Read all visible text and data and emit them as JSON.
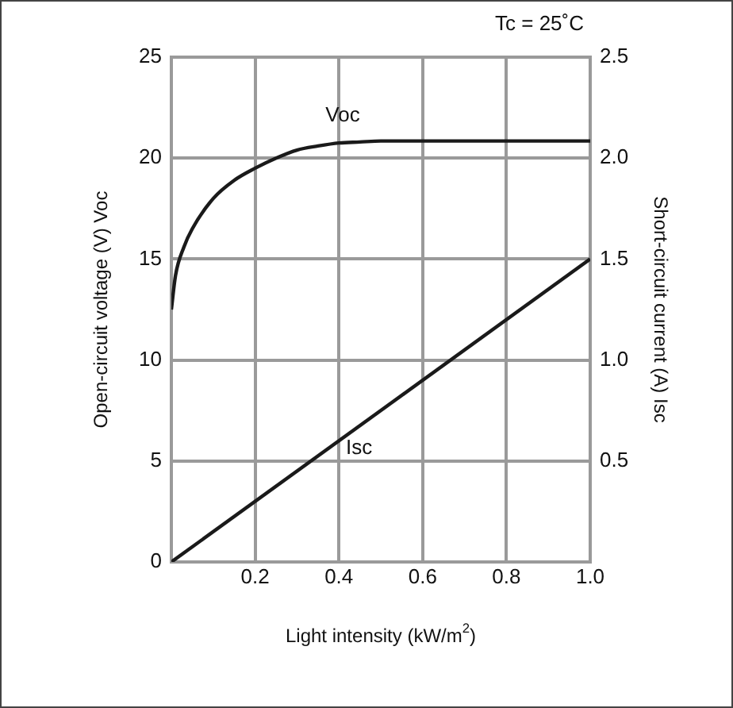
{
  "chart_data": {
    "type": "line",
    "xlabel": "Light intensity (kW/m$^{2}$)",
    "ylabel": "Open-circuit voltage (V) Voc",
    "y2label": "Short-circuit current (A) Isc",
    "annotations": [
      "Tc = 25˚C"
    ],
    "xlim": [
      0,
      1.0
    ],
    "xticks": [
      {
        "value": 0,
        "label": null
      },
      0.2,
      0.4,
      0.6,
      0.8,
      {
        "value": 1.0,
        "label": "1.0"
      }
    ],
    "ylim": [
      0,
      25
    ],
    "yticks": [
      0,
      5,
      10,
      15,
      20,
      25
    ],
    "y2lim": [
      0,
      2.5
    ],
    "y2ticks": [
      {
        "value": 0,
        "label": null
      },
      0.5,
      {
        "value": 1.0,
        "label": "1.0"
      },
      1.5,
      {
        "value": 2.0,
        "label": "2.0"
      },
      2.5
    ],
    "grid": true,
    "legend": false,
    "marker": "none",
    "line_style": "solid",
    "series": [
      {
        "name": "Voc",
        "color": "#1a1a1a",
        "x": [
          0,
          0.01,
          0.03,
          0.05,
          0.1,
          0.15,
          0.2,
          0.25,
          0.3,
          0.35,
          0.4,
          0.45,
          0.5,
          0.6,
          0.8,
          1.0
        ],
        "values": [
          12.5,
          14.2,
          15.6,
          16.5,
          18.0,
          18.9,
          19.5,
          20.0,
          20.4,
          20.6,
          20.75,
          20.8,
          20.85,
          20.85,
          20.85,
          20.85
        ]
      },
      {
        "name": "Isc",
        "color": "#1a1a1a",
        "axis": "y2",
        "x": [
          0,
          1.0
        ],
        "values": [
          0,
          1.5
        ]
      }
    ]
  }
}
